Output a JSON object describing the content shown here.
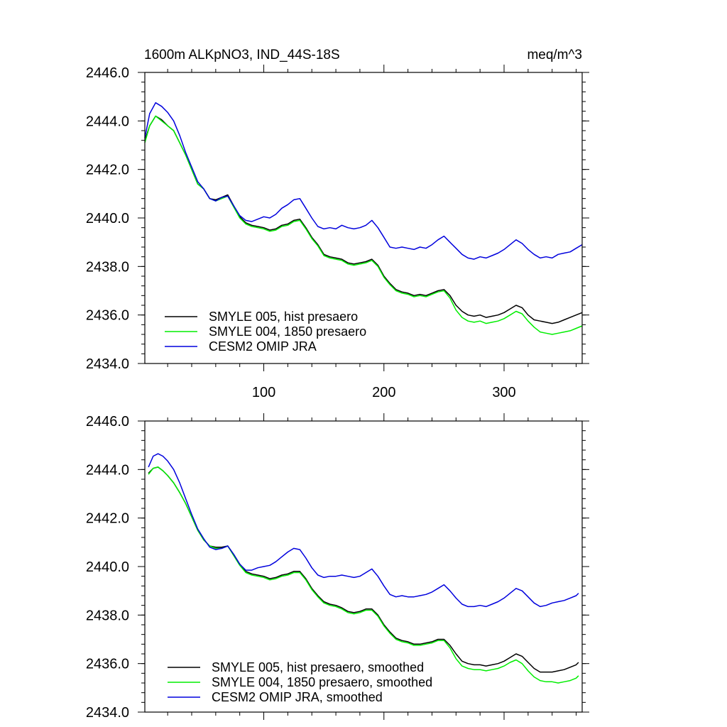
{
  "chart_data": [
    {
      "type": "line",
      "title": "1600m ALKpNO3, IND_44S-18S",
      "units": "meq/m^3",
      "xlabel": "",
      "ylabel": "",
      "xlim": [
        1,
        365
      ],
      "ylim": [
        2434.0,
        2446.0
      ],
      "xticks": [
        100,
        200,
        300
      ],
      "xtick_labels": [
        "100",
        "200",
        "300"
      ],
      "yticks": [
        2434.0,
        2436.0,
        2438.0,
        2440.0,
        2442.0,
        2444.0,
        2446.0
      ],
      "ytick_labels": [
        "2434.0",
        "2436.0",
        "2438.0",
        "2440.0",
        "2442.0",
        "2444.0",
        "2446.0"
      ],
      "legend_position": "bottom-left",
      "series": [
        {
          "name": "SMYLE 005, hist presaero",
          "color": "#000000",
          "x": [
            1,
            5,
            10,
            15,
            20,
            25,
            30,
            35,
            40,
            45,
            50,
            55,
            60,
            65,
            70,
            75,
            80,
            85,
            90,
            95,
            100,
            105,
            110,
            115,
            120,
            125,
            130,
            135,
            140,
            145,
            150,
            155,
            160,
            165,
            170,
            175,
            180,
            185,
            190,
            195,
            200,
            205,
            210,
            215,
            220,
            225,
            230,
            235,
            240,
            245,
            250,
            255,
            260,
            265,
            270,
            275,
            280,
            285,
            290,
            295,
            300,
            305,
            310,
            315,
            320,
            325,
            330,
            335,
            340,
            345,
            350,
            355,
            360,
            365
          ],
          "y": [
            2443.2,
            2443.8,
            2444.2,
            2444.05,
            2443.8,
            2443.6,
            2443.1,
            2442.6,
            2442.0,
            2441.4,
            2441.2,
            2440.8,
            2440.75,
            2440.85,
            2440.95,
            2440.5,
            2440.05,
            2439.8,
            2439.7,
            2439.65,
            2439.6,
            2439.5,
            2439.55,
            2439.7,
            2439.75,
            2439.9,
            2439.95,
            2439.6,
            2439.2,
            2438.9,
            2438.5,
            2438.4,
            2438.35,
            2438.3,
            2438.15,
            2438.1,
            2438.15,
            2438.2,
            2438.3,
            2438.05,
            2437.6,
            2437.3,
            2437.05,
            2436.95,
            2436.9,
            2436.8,
            2436.85,
            2436.8,
            2436.9,
            2437.0,
            2437.05,
            2436.8,
            2436.4,
            2436.15,
            2436.0,
            2435.95,
            2436.0,
            2435.9,
            2435.95,
            2436.0,
            2436.1,
            2436.25,
            2436.4,
            2436.3,
            2436.0,
            2435.8,
            2435.75,
            2435.7,
            2435.65,
            2435.7,
            2435.8,
            2435.9,
            2436.0,
            2436.1
          ]
        },
        {
          "name": "SMYLE 004, 1850 presaero",
          "color": "#00ee00",
          "x": [
            1,
            5,
            10,
            15,
            20,
            25,
            30,
            35,
            40,
            45,
            50,
            55,
            60,
            65,
            70,
            75,
            80,
            85,
            90,
            95,
            100,
            105,
            110,
            115,
            120,
            125,
            130,
            135,
            140,
            145,
            150,
            155,
            160,
            165,
            170,
            175,
            180,
            185,
            190,
            195,
            200,
            205,
            210,
            215,
            220,
            225,
            230,
            235,
            240,
            245,
            250,
            255,
            260,
            265,
            270,
            275,
            280,
            285,
            290,
            295,
            300,
            305,
            310,
            315,
            320,
            325,
            330,
            335,
            340,
            345,
            350,
            355,
            360,
            365
          ],
          "y": [
            2443.1,
            2443.8,
            2444.2,
            2444.0,
            2443.8,
            2443.6,
            2443.1,
            2442.6,
            2442.0,
            2441.4,
            2441.2,
            2440.8,
            2440.7,
            2440.8,
            2440.9,
            2440.45,
            2440.0,
            2439.75,
            2439.65,
            2439.6,
            2439.55,
            2439.45,
            2439.5,
            2439.65,
            2439.7,
            2439.85,
            2439.9,
            2439.55,
            2439.15,
            2438.85,
            2438.45,
            2438.35,
            2438.3,
            2438.25,
            2438.1,
            2438.05,
            2438.1,
            2438.15,
            2438.25,
            2438.0,
            2437.55,
            2437.25,
            2437.0,
            2436.9,
            2436.85,
            2436.75,
            2436.8,
            2436.75,
            2436.85,
            2436.95,
            2437.0,
            2436.7,
            2436.2,
            2435.9,
            2435.75,
            2435.7,
            2435.75,
            2435.65,
            2435.7,
            2435.75,
            2435.85,
            2436.0,
            2436.15,
            2436.05,
            2435.75,
            2435.5,
            2435.3,
            2435.25,
            2435.2,
            2435.25,
            2435.3,
            2435.35,
            2435.45,
            2435.55
          ]
        },
        {
          "name": "CESM2 OMIP JRA",
          "color": "#0000dd",
          "x": [
            1,
            5,
            10,
            15,
            20,
            25,
            30,
            35,
            40,
            45,
            50,
            55,
            60,
            65,
            70,
            75,
            80,
            85,
            90,
            95,
            100,
            105,
            110,
            115,
            120,
            125,
            130,
            135,
            140,
            145,
            150,
            155,
            160,
            165,
            170,
            175,
            180,
            185,
            190,
            195,
            200,
            205,
            210,
            215,
            220,
            225,
            230,
            235,
            240,
            245,
            250,
            255,
            260,
            265,
            270,
            275,
            280,
            285,
            290,
            295,
            300,
            305,
            310,
            315,
            320,
            325,
            330,
            335,
            340,
            345,
            350,
            355,
            360,
            365
          ],
          "y": [
            2443.3,
            2444.3,
            2444.75,
            2444.6,
            2444.35,
            2444.0,
            2443.4,
            2442.7,
            2442.1,
            2441.5,
            2441.2,
            2440.8,
            2440.7,
            2440.85,
            2440.9,
            2440.5,
            2440.1,
            2439.9,
            2439.85,
            2439.95,
            2440.05,
            2440.0,
            2440.15,
            2440.4,
            2440.55,
            2440.75,
            2440.8,
            2440.4,
            2440.0,
            2439.65,
            2439.55,
            2439.6,
            2439.55,
            2439.7,
            2439.6,
            2439.55,
            2439.6,
            2439.7,
            2439.9,
            2439.6,
            2439.2,
            2438.8,
            2438.75,
            2438.8,
            2438.75,
            2438.7,
            2438.8,
            2438.75,
            2438.9,
            2439.1,
            2439.25,
            2439.0,
            2438.75,
            2438.5,
            2438.35,
            2438.3,
            2438.4,
            2438.35,
            2438.45,
            2438.55,
            2438.7,
            2438.9,
            2439.1,
            2438.95,
            2438.7,
            2438.5,
            2438.35,
            2438.4,
            2438.35,
            2438.5,
            2438.55,
            2438.6,
            2438.75,
            2438.9
          ]
        }
      ]
    },
    {
      "type": "line",
      "title": "",
      "xlabel": "",
      "ylabel": "",
      "xlim": [
        1,
        365
      ],
      "ylim": [
        2434.0,
        2446.0
      ],
      "xticks": [
        100,
        200,
        300
      ],
      "yticks": [
        2434.0,
        2436.0,
        2438.0,
        2440.0,
        2442.0,
        2444.0,
        2446.0
      ],
      "ytick_labels": [
        "2434.0",
        "2436.0",
        "2438.0",
        "2440.0",
        "2442.0",
        "2444.0",
        "2446.0"
      ],
      "legend_position": "bottom-left",
      "series": [
        {
          "name": "SMYLE 005, hist presaero, smoothed",
          "color": "#000000",
          "x": [
            4,
            8,
            12,
            16,
            20,
            25,
            30,
            35,
            40,
            45,
            50,
            55,
            60,
            65,
            70,
            75,
            80,
            85,
            90,
            95,
            100,
            105,
            110,
            115,
            120,
            125,
            130,
            135,
            140,
            145,
            150,
            155,
            160,
            165,
            170,
            175,
            180,
            185,
            190,
            195,
            200,
            205,
            210,
            215,
            220,
            225,
            230,
            235,
            240,
            245,
            250,
            255,
            260,
            265,
            270,
            275,
            280,
            285,
            290,
            295,
            300,
            305,
            310,
            315,
            320,
            325,
            330,
            335,
            340,
            345,
            350,
            355,
            360,
            362
          ],
          "y": [
            2443.85,
            2444.05,
            2444.1,
            2443.95,
            2443.75,
            2443.45,
            2443.05,
            2442.6,
            2442.05,
            2441.5,
            2441.1,
            2440.85,
            2440.8,
            2440.8,
            2440.85,
            2440.5,
            2440.1,
            2439.8,
            2439.7,
            2439.65,
            2439.6,
            2439.5,
            2439.55,
            2439.65,
            2439.7,
            2439.8,
            2439.8,
            2439.5,
            2439.1,
            2438.8,
            2438.55,
            2438.45,
            2438.4,
            2438.3,
            2438.15,
            2438.1,
            2438.15,
            2438.25,
            2438.25,
            2438.0,
            2437.6,
            2437.3,
            2437.05,
            2436.95,
            2436.9,
            2436.8,
            2436.8,
            2436.85,
            2436.9,
            2437.0,
            2437.0,
            2436.75,
            2436.4,
            2436.1,
            2436.0,
            2435.95,
            2435.95,
            2435.9,
            2435.95,
            2436.0,
            2436.1,
            2436.25,
            2436.4,
            2436.3,
            2436.05,
            2435.8,
            2435.65,
            2435.65,
            2435.65,
            2435.7,
            2435.75,
            2435.85,
            2435.95,
            2436.05
          ]
        },
        {
          "name": "SMYLE 004, 1850 presaero, smoothed",
          "color": "#00ee00",
          "x": [
            4,
            8,
            12,
            16,
            20,
            25,
            30,
            35,
            40,
            45,
            50,
            55,
            60,
            65,
            70,
            75,
            80,
            85,
            90,
            95,
            100,
            105,
            110,
            115,
            120,
            125,
            130,
            135,
            140,
            145,
            150,
            155,
            160,
            165,
            170,
            175,
            180,
            185,
            190,
            195,
            200,
            205,
            210,
            215,
            220,
            225,
            230,
            235,
            240,
            245,
            250,
            255,
            260,
            265,
            270,
            275,
            280,
            285,
            290,
            295,
            300,
            305,
            310,
            315,
            320,
            325,
            330,
            335,
            340,
            345,
            350,
            355,
            360,
            362
          ],
          "y": [
            2443.8,
            2444.05,
            2444.1,
            2443.95,
            2443.75,
            2443.45,
            2443.05,
            2442.6,
            2442.05,
            2441.5,
            2441.1,
            2440.85,
            2440.75,
            2440.75,
            2440.85,
            2440.45,
            2440.05,
            2439.75,
            2439.65,
            2439.6,
            2439.55,
            2439.45,
            2439.5,
            2439.6,
            2439.65,
            2439.75,
            2439.75,
            2439.45,
            2439.05,
            2438.75,
            2438.5,
            2438.4,
            2438.35,
            2438.25,
            2438.1,
            2438.05,
            2438.1,
            2438.2,
            2438.2,
            2437.95,
            2437.55,
            2437.25,
            2437.0,
            2436.9,
            2436.85,
            2436.75,
            2436.75,
            2436.8,
            2436.85,
            2436.95,
            2436.95,
            2436.65,
            2436.2,
            2435.9,
            2435.8,
            2435.75,
            2435.75,
            2435.7,
            2435.75,
            2435.8,
            2435.9,
            2436.05,
            2436.15,
            2436.0,
            2435.7,
            2435.45,
            2435.3,
            2435.25,
            2435.25,
            2435.2,
            2435.25,
            2435.3,
            2435.4,
            2435.5
          ]
        },
        {
          "name": "CESM2 OMIP JRA, smoothed",
          "color": "#0000dd",
          "x": [
            4,
            8,
            12,
            16,
            20,
            25,
            30,
            35,
            40,
            45,
            50,
            55,
            60,
            65,
            70,
            75,
            80,
            85,
            90,
            95,
            100,
            105,
            110,
            115,
            120,
            125,
            130,
            135,
            140,
            145,
            150,
            155,
            160,
            165,
            170,
            175,
            180,
            185,
            190,
            195,
            200,
            205,
            210,
            215,
            220,
            225,
            230,
            235,
            240,
            245,
            250,
            255,
            260,
            265,
            270,
            275,
            280,
            285,
            290,
            295,
            300,
            305,
            310,
            315,
            320,
            325,
            330,
            335,
            340,
            345,
            350,
            355,
            360,
            362
          ],
          "y": [
            2444.1,
            2444.55,
            2444.65,
            2444.55,
            2444.35,
            2444.0,
            2443.45,
            2442.8,
            2442.15,
            2441.55,
            2441.15,
            2440.8,
            2440.7,
            2440.75,
            2440.85,
            2440.5,
            2440.1,
            2439.85,
            2439.85,
            2439.95,
            2440.0,
            2440.05,
            2440.2,
            2440.4,
            2440.6,
            2440.75,
            2440.7,
            2440.35,
            2439.95,
            2439.65,
            2439.55,
            2439.6,
            2439.6,
            2439.65,
            2439.6,
            2439.55,
            2439.6,
            2439.75,
            2439.9,
            2439.6,
            2439.2,
            2438.85,
            2438.75,
            2438.8,
            2438.75,
            2438.75,
            2438.8,
            2438.85,
            2438.95,
            2439.1,
            2439.25,
            2439.0,
            2438.7,
            2438.45,
            2438.35,
            2438.35,
            2438.4,
            2438.35,
            2438.45,
            2438.55,
            2438.7,
            2438.9,
            2439.1,
            2439.0,
            2438.75,
            2438.5,
            2438.35,
            2438.4,
            2438.5,
            2438.55,
            2438.6,
            2438.7,
            2438.8,
            2438.9
          ]
        }
      ]
    }
  ]
}
